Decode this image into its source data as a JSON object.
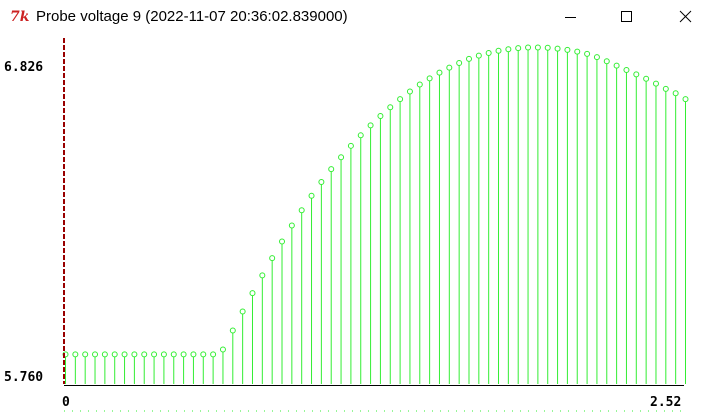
{
  "window": {
    "title": "Probe voltage 9 (2022-11-07 20:36:02.839000)",
    "app_icon_glyph": "7k",
    "buttons": {
      "minimize": "minimize-icon",
      "maximize": "maximize-icon",
      "close": "close-icon"
    }
  },
  "colors": {
    "stem": "#33ee33",
    "marker_line": "#990000",
    "marker_dash": "#ff3333",
    "axis": "#000000"
  },
  "axes": {
    "y_top_label": "6.826",
    "y_bottom_label": "5.760",
    "x_left_label": "0",
    "x_right_label": "2.52"
  },
  "chart_data": {
    "type": "stem",
    "xlim": [
      0,
      2.52
    ],
    "ylim": [
      5.76,
      6.826
    ],
    "cursor_x": 0,
    "x": [
      0.0,
      0.04,
      0.08,
      0.12,
      0.16,
      0.2,
      0.24,
      0.28,
      0.32,
      0.36,
      0.4,
      0.44,
      0.48,
      0.52,
      0.56,
      0.6,
      0.64,
      0.68,
      0.72,
      0.76,
      0.8,
      0.84,
      0.88,
      0.92,
      0.96,
      1.0,
      1.04,
      1.08,
      1.12,
      1.16,
      1.2,
      1.24,
      1.28,
      1.32,
      1.36,
      1.4,
      1.44,
      1.48,
      1.52,
      1.56,
      1.6,
      1.64,
      1.68,
      1.72,
      1.76,
      1.8,
      1.84,
      1.88,
      1.92,
      1.96,
      2.0,
      2.04,
      2.08,
      2.12,
      2.16,
      2.2,
      2.24,
      2.28,
      2.32,
      2.36,
      2.4,
      2.44,
      2.48,
      2.52
    ],
    "values": [
      5.81,
      5.81,
      5.81,
      5.81,
      5.81,
      5.81,
      5.81,
      5.81,
      5.81,
      5.81,
      5.81,
      5.81,
      5.81,
      5.81,
      5.81,
      5.81,
      5.827,
      5.892,
      5.957,
      6.02,
      6.081,
      6.14,
      6.197,
      6.252,
      6.304,
      6.354,
      6.401,
      6.445,
      6.486,
      6.525,
      6.561,
      6.595,
      6.627,
      6.657,
      6.685,
      6.711,
      6.735,
      6.756,
      6.776,
      6.793,
      6.809,
      6.823,
      6.834,
      6.843,
      6.851,
      6.856,
      6.86,
      6.862,
      6.862,
      6.861,
      6.858,
      6.854,
      6.848,
      6.84,
      6.829,
      6.815,
      6.8,
      6.785,
      6.77,
      6.755,
      6.738,
      6.72,
      6.705,
      6.685
    ]
  }
}
